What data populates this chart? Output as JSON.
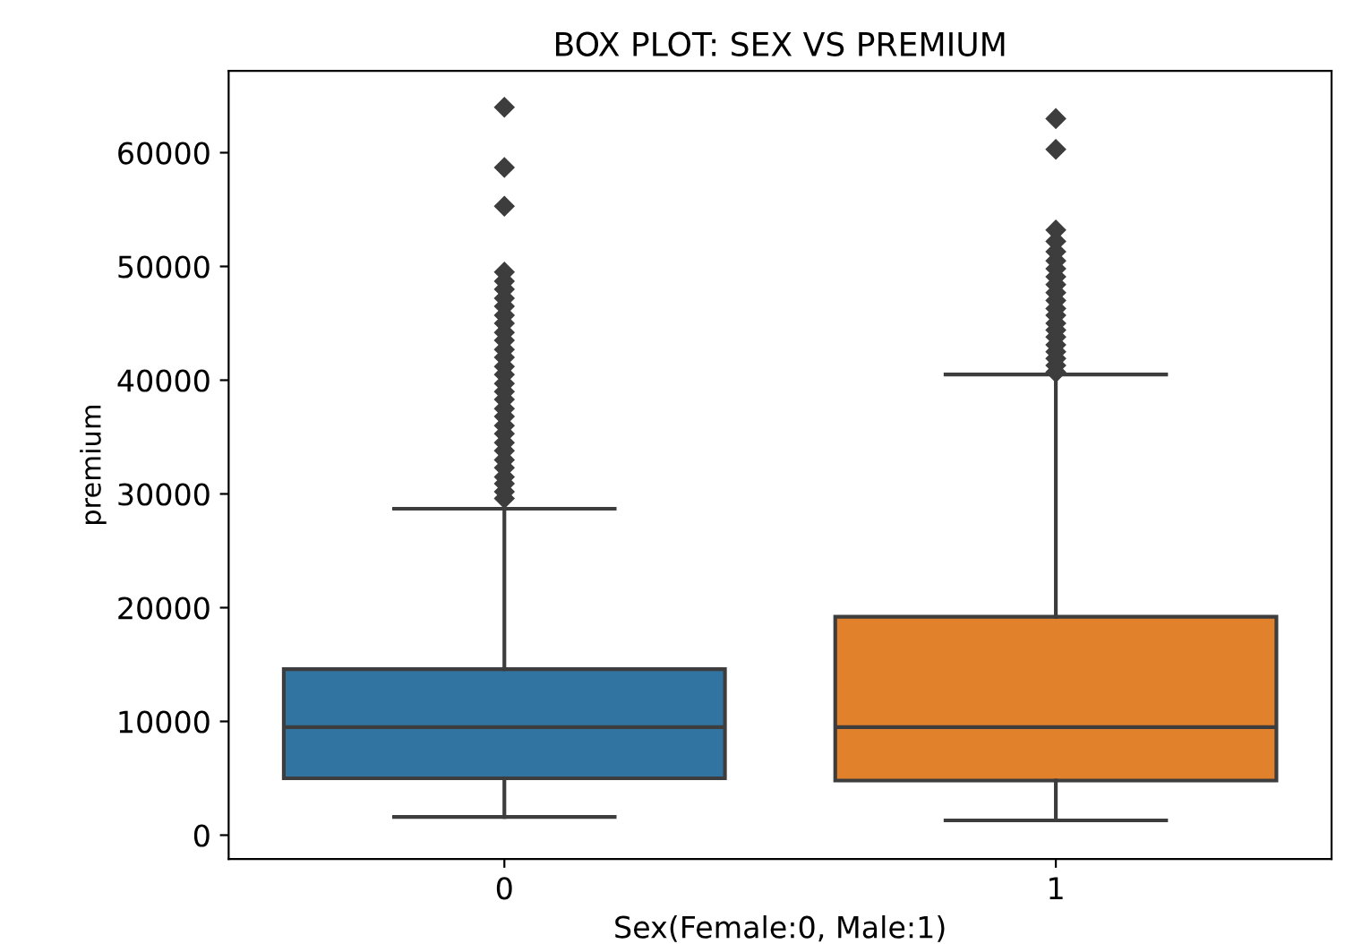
{
  "chart_data": {
    "type": "box",
    "title": "BOX PLOT: SEX VS PREMIUM",
    "xlabel": "Sex(Female:0, Male:1)",
    "ylabel": "premium",
    "categories": [
      "0",
      "1"
    ],
    "colors": [
      "#3274a1",
      "#e1812c"
    ],
    "boxes": [
      {
        "low": 1600,
        "q1": 5000,
        "median": 9500,
        "q3": 14600,
        "high": 28700,
        "outliers": [
          29600,
          30200,
          30900,
          31500,
          32300,
          33000,
          33800,
          34500,
          35300,
          36000,
          36800,
          37500,
          38300,
          39000,
          39700,
          40500,
          41200,
          42000,
          42700,
          43500,
          44200,
          45000,
          45700,
          46500,
          47200,
          48000,
          48700,
          49500,
          55300,
          58700,
          64000
        ]
      },
      {
        "low": 1300,
        "q1": 4800,
        "median": 9500,
        "q3": 19200,
        "high": 40500,
        "outliers": [
          40700,
          41300,
          41900,
          42500,
          43100,
          43800,
          44400,
          45000,
          45700,
          46300,
          47000,
          47700,
          48400,
          49100,
          49800,
          50500,
          51300,
          52200,
          53200,
          60300,
          63000
        ]
      }
    ],
    "ylim": [
      -2100,
      67200
    ],
    "yticks": [
      0,
      10000,
      20000,
      30000,
      40000,
      50000,
      60000
    ],
    "marker": "diamond",
    "grid": false,
    "legend": false
  }
}
